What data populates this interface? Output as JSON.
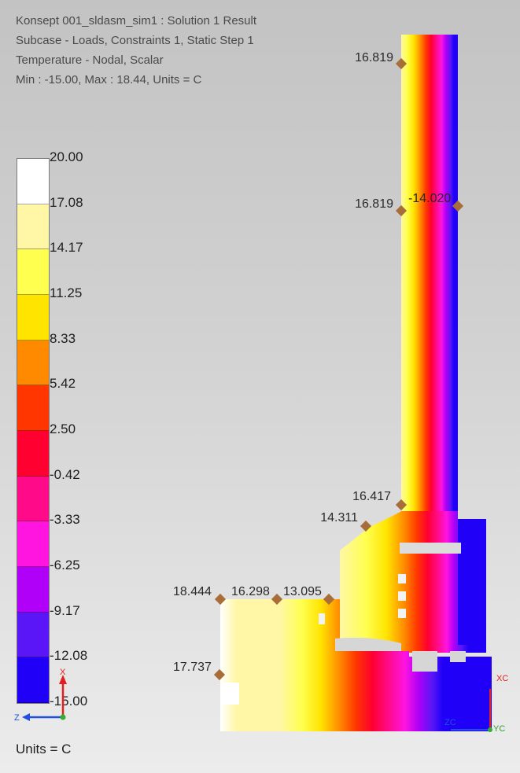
{
  "header": {
    "line1": "Konsept 001_sldasm_sim1 : Solution 1 Result",
    "line2": "Subcase - Loads, Constraints 1, Static Step 1",
    "line3": "Temperature - Nodal, Scalar",
    "line4": "Min : -15.00, Max : 18.44, Units = C"
  },
  "legend": {
    "labels": [
      "20.00",
      "17.08",
      "14.17",
      "11.25",
      "8.33",
      "5.42",
      "2.50",
      "-0.42",
      "-3.33",
      "-6.25",
      "-9.17",
      "-12.08",
      "-15.00"
    ],
    "colors": [
      "#ffffff",
      "#fff7a6",
      "#ffff50",
      "#ffe400",
      "#ff8a00",
      "#ff3600",
      "#ff0030",
      "#ff0b8a",
      "#ff14e0",
      "#b000f7",
      "#5a16f7",
      "#2000f7"
    ],
    "units": "Units = C"
  },
  "probes": [
    {
      "id": "p1",
      "value": "16.819"
    },
    {
      "id": "p2",
      "value": "16.819"
    },
    {
      "id": "p3",
      "value": "-14.020"
    },
    {
      "id": "p4",
      "value": "16.417"
    },
    {
      "id": "p5",
      "value": "14.311"
    },
    {
      "id": "p6",
      "value": "18.444"
    },
    {
      "id": "p7",
      "value": "16.298"
    },
    {
      "id": "p8",
      "value": "13.095"
    },
    {
      "id": "p9",
      "value": "17.737"
    }
  ],
  "triad": {
    "x": "X",
    "z": "Z"
  },
  "wcs": {
    "xc": "XC",
    "yc": "YC",
    "zc": "ZC"
  }
}
